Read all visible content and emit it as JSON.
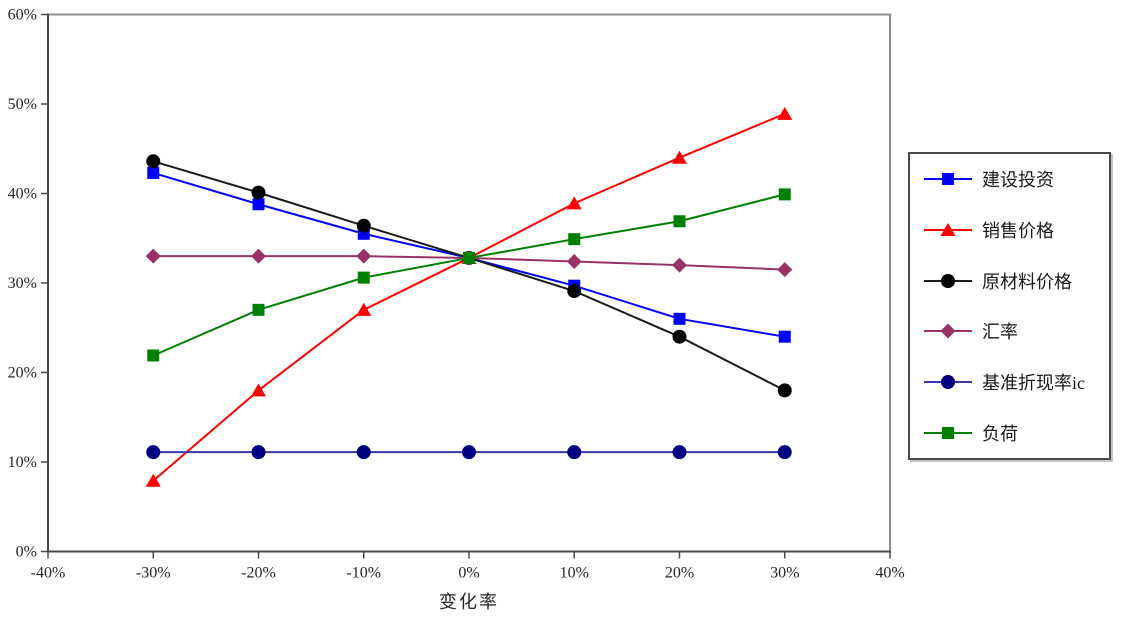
{
  "chart_data": {
    "type": "line",
    "title": "",
    "xlabel": "变化率",
    "ylabel": "",
    "x": [
      -30,
      -20,
      -10,
      0,
      10,
      20,
      30
    ],
    "xticks": [
      "-40%",
      "-30%",
      "-20%",
      "-10%",
      "0%",
      "10%",
      "20%",
      "30%",
      "40%"
    ],
    "xtick_values": [
      -40,
      -30,
      -20,
      -10,
      0,
      10,
      20,
      30,
      40
    ],
    "yticks": [
      "0%",
      "10%",
      "20%",
      "30%",
      "40%",
      "50%",
      "60%"
    ],
    "ytick_values": [
      0,
      10,
      20,
      30,
      40,
      50,
      60
    ],
    "xlim": [
      -40,
      40
    ],
    "ylim": [
      0,
      60
    ],
    "grid": false,
    "legend_position": "right",
    "series": [
      {
        "name": "建设投资",
        "marker": "square",
        "line_color": "#0000ff",
        "marker_color": "#0000ff",
        "values": [
          42.3,
          38.8,
          35.5,
          32.8,
          29.7,
          26.0,
          24.0
        ]
      },
      {
        "name": "销售价格",
        "marker": "triangle",
        "line_color": "#ff0000",
        "marker_color": "#ff0000",
        "values": [
          7.9,
          18.0,
          27.0,
          32.8,
          38.9,
          44.0,
          48.9
        ]
      },
      {
        "name": "原材料价格",
        "marker": "circle",
        "line_color": "#1a1a1a",
        "marker_color": "#000000",
        "values": [
          43.6,
          40.1,
          36.4,
          32.8,
          29.1,
          24.0,
          18.0
        ]
      },
      {
        "name": "汇率",
        "marker": "diamond",
        "line_color": "#993366",
        "marker_color": "#993366",
        "values": [
          33.0,
          33.0,
          33.0,
          32.8,
          32.4,
          32.0,
          31.5
        ]
      },
      {
        "name": "基准折现率ic",
        "marker": "circle",
        "line_color": "#3838ae",
        "marker_color": "#000080",
        "values": [
          11.1,
          11.1,
          11.1,
          11.1,
          11.1,
          11.1,
          11.1
        ]
      },
      {
        "name": "负荷",
        "marker": "square",
        "line_color": "#008000",
        "marker_color": "#008000",
        "values": [
          21.9,
          27.0,
          30.6,
          32.8,
          34.9,
          36.9,
          39.9
        ]
      }
    ]
  }
}
